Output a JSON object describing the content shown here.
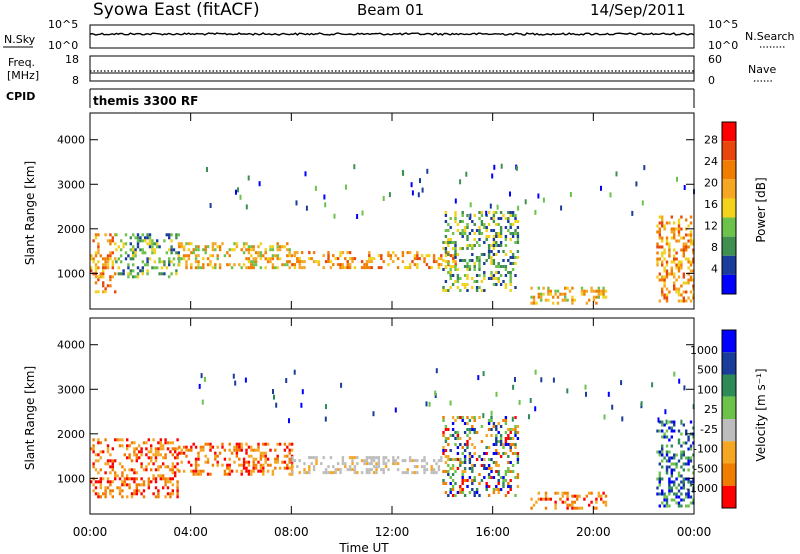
{
  "header": {
    "station": "Syowa East (fitACF)",
    "beam": "Beam 01",
    "date": "14/Sep/2011"
  },
  "panels": {
    "nsky": {
      "left_label": "N.Sky",
      "right_label": "N.Search",
      "left_ticks": [
        "10^5",
        "10^0"
      ],
      "right_ticks": [
        "10^5",
        "10^0"
      ]
    },
    "freq": {
      "left_label_1": "Freq.",
      "left_label_2": "[MHz]",
      "right_label": "Nave",
      "left_ticks": [
        "18",
        "8"
      ],
      "right_ticks": [
        "60",
        "0"
      ]
    },
    "cpid": {
      "label": "CPID",
      "value": "themis 3300 RF"
    }
  },
  "colors": {
    "power": [
      "#0000ff",
      "#1a3c9a",
      "#3f8f4f",
      "#6cc24a",
      "#f2d21b",
      "#f5a623",
      "#f07c00",
      "#e8460a",
      "#ff0000"
    ],
    "velocity_neg": [
      "#ff0000",
      "#f07c00",
      "#f5a623"
    ],
    "velocity_small": "#bdbdbd",
    "velocity_pos": [
      "#6cc24a",
      "#2e8b57",
      "#1a3c9a",
      "#0000ff"
    ]
  },
  "chart_data": [
    {
      "type": "heatmap",
      "name": "power",
      "ylabel": "Slant Range [km]",
      "yticks": [
        "1000",
        "2000",
        "3000",
        "4000"
      ],
      "ylim": [
        200,
        4600
      ],
      "xlim": [
        0,
        24
      ],
      "colorbar": {
        "label": "Power [dB]",
        "ticks": [
          "4",
          "8",
          "12",
          "16",
          "20",
          "24",
          "28"
        ],
        "range": [
          0,
          30
        ]
      },
      "echo_regions": [
        {
          "t_start": 0.0,
          "t_end": 1.0,
          "r_min": 600,
          "r_max": 1900,
          "level": "medium-high"
        },
        {
          "t_start": 1.0,
          "t_end": 3.5,
          "r_min": 900,
          "r_max": 1900,
          "level": "low-medium"
        },
        {
          "t_start": 3.5,
          "t_end": 8.0,
          "r_min": 1100,
          "r_max": 1700,
          "level": "medium"
        },
        {
          "t_start": 8.0,
          "t_end": 14.5,
          "r_min": 1100,
          "r_max": 1500,
          "level": "medium-high"
        },
        {
          "t_start": 14.0,
          "t_end": 17.0,
          "r_min": 600,
          "r_max": 2400,
          "level": "low"
        },
        {
          "t_start": 17.5,
          "t_end": 20.5,
          "r_min": 300,
          "r_max": 700,
          "level": "medium"
        },
        {
          "t_start": 22.5,
          "t_end": 24.0,
          "r_min": 400,
          "r_max": 2300,
          "level": "medium-high"
        }
      ]
    },
    {
      "type": "heatmap",
      "name": "velocity",
      "ylabel": "Slant Range [km]",
      "xlabel": "Time UT",
      "xticks": [
        "00:00",
        "04:00",
        "08:00",
        "12:00",
        "16:00",
        "20:00",
        "00:00"
      ],
      "yticks": [
        "1000",
        "2000",
        "3000",
        "4000"
      ],
      "ylim": [
        200,
        4600
      ],
      "xlim": [
        0,
        24
      ],
      "colorbar": {
        "label": "Velocity [m s⁻¹]",
        "ticks": [
          "1000",
          "500",
          "100",
          "25",
          "-25",
          "-100",
          "-500",
          "-1000"
        ]
      },
      "echo_regions": [
        {
          "t_start": 0.0,
          "t_end": 3.5,
          "r_min": 600,
          "r_max": 1900,
          "velocity": "negative"
        },
        {
          "t_start": 3.5,
          "t_end": 8.0,
          "r_min": 1100,
          "r_max": 1800,
          "velocity": "negative"
        },
        {
          "t_start": 8.0,
          "t_end": 14.0,
          "r_min": 1100,
          "r_max": 1500,
          "velocity": "near-zero"
        },
        {
          "t_start": 14.0,
          "t_end": 17.0,
          "r_min": 600,
          "r_max": 2400,
          "velocity": "mixed"
        },
        {
          "t_start": 17.5,
          "t_end": 20.5,
          "r_min": 300,
          "r_max": 700,
          "velocity": "negative"
        },
        {
          "t_start": 22.5,
          "t_end": 24.0,
          "r_min": 400,
          "r_max": 2300,
          "velocity": "positive"
        }
      ]
    }
  ]
}
